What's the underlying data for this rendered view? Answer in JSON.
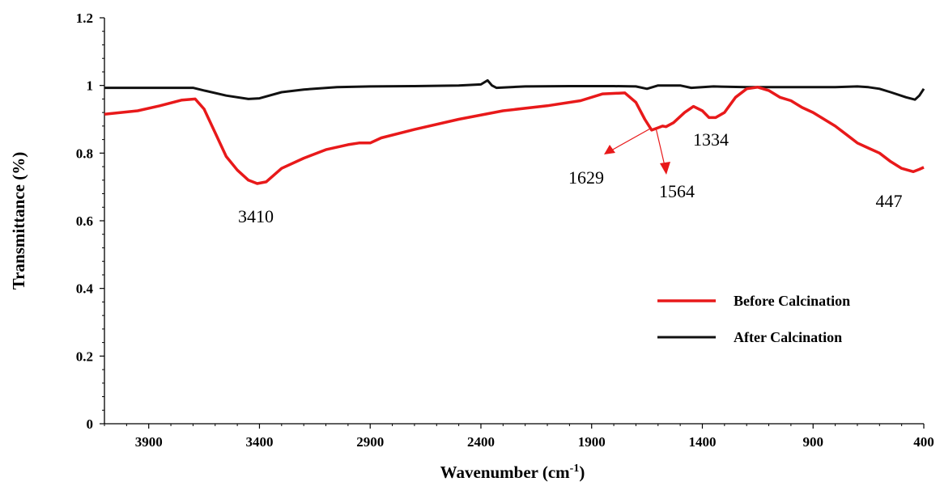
{
  "chart_data": {
    "type": "line",
    "xlabel": "Wavenumber (cm",
    "xlabel_sup": "-1",
    "xlabel_end": ")",
    "ylabel": "Transmittance (%)",
    "xlim": [
      4100,
      400
    ],
    "x_reversed": true,
    "ylim": [
      0,
      1.2
    ],
    "x_ticks": [
      3900,
      3400,
      2900,
      2400,
      1900,
      1400,
      900,
      400
    ],
    "y_ticks": [
      0,
      0.2,
      0.4,
      0.6,
      0.8,
      1,
      1.2
    ],
    "y_tick_labels": [
      "0",
      "0.2",
      "0.4",
      "0.6",
      "0.8",
      "1",
      "1.2"
    ],
    "grid": false,
    "legend_position": "center-right",
    "series": [
      {
        "name": "Before Calcination",
        "color": "#e8191a",
        "points": [
          [
            4100,
            0.915
          ],
          [
            3950,
            0.925
          ],
          [
            3850,
            0.94
          ],
          [
            3750,
            0.957
          ],
          [
            3690,
            0.96
          ],
          [
            3650,
            0.93
          ],
          [
            3600,
            0.86
          ],
          [
            3550,
            0.79
          ],
          [
            3500,
            0.75
          ],
          [
            3450,
            0.72
          ],
          [
            3410,
            0.71
          ],
          [
            3370,
            0.715
          ],
          [
            3300,
            0.755
          ],
          [
            3200,
            0.785
          ],
          [
            3100,
            0.81
          ],
          [
            3000,
            0.825
          ],
          [
            2950,
            0.83
          ],
          [
            2900,
            0.83
          ],
          [
            2850,
            0.845
          ],
          [
            2700,
            0.87
          ],
          [
            2500,
            0.9
          ],
          [
            2300,
            0.925
          ],
          [
            2100,
            0.94
          ],
          [
            1950,
            0.955
          ],
          [
            1850,
            0.975
          ],
          [
            1750,
            0.978
          ],
          [
            1700,
            0.95
          ],
          [
            1660,
            0.9
          ],
          [
            1629,
            0.868
          ],
          [
            1600,
            0.875
          ],
          [
            1580,
            0.88
          ],
          [
            1564,
            0.878
          ],
          [
            1530,
            0.89
          ],
          [
            1480,
            0.92
          ],
          [
            1440,
            0.938
          ],
          [
            1400,
            0.925
          ],
          [
            1370,
            0.905
          ],
          [
            1340,
            0.905
          ],
          [
            1300,
            0.92
          ],
          [
            1250,
            0.965
          ],
          [
            1200,
            0.99
          ],
          [
            1150,
            0.995
          ],
          [
            1100,
            0.985
          ],
          [
            1050,
            0.965
          ],
          [
            1000,
            0.955
          ],
          [
            950,
            0.935
          ],
          [
            900,
            0.92
          ],
          [
            850,
            0.9
          ],
          [
            800,
            0.88
          ],
          [
            750,
            0.855
          ],
          [
            700,
            0.83
          ],
          [
            650,
            0.815
          ],
          [
            600,
            0.8
          ],
          [
            550,
            0.775
          ],
          [
            500,
            0.755
          ],
          [
            447,
            0.745
          ],
          [
            420,
            0.752
          ],
          [
            400,
            0.758
          ]
        ]
      },
      {
        "name": "After Calcination",
        "color": "#111111",
        "points": [
          [
            4100,
            0.993
          ],
          [
            3900,
            0.993
          ],
          [
            3700,
            0.993
          ],
          [
            3650,
            0.985
          ],
          [
            3550,
            0.97
          ],
          [
            3450,
            0.96
          ],
          [
            3400,
            0.962
          ],
          [
            3300,
            0.98
          ],
          [
            3200,
            0.988
          ],
          [
            3050,
            0.995
          ],
          [
            2900,
            0.997
          ],
          [
            2700,
            0.998
          ],
          [
            2500,
            1.0
          ],
          [
            2400,
            1.003
          ],
          [
            2370,
            1.015
          ],
          [
            2350,
            1.0
          ],
          [
            2330,
            0.993
          ],
          [
            2200,
            0.997
          ],
          [
            2000,
            0.998
          ],
          [
            1800,
            0.998
          ],
          [
            1700,
            0.997
          ],
          [
            1650,
            0.99
          ],
          [
            1600,
            1.0
          ],
          [
            1500,
            1.0
          ],
          [
            1450,
            0.993
          ],
          [
            1350,
            0.997
          ],
          [
            1200,
            0.995
          ],
          [
            1100,
            0.995
          ],
          [
            950,
            0.995
          ],
          [
            800,
            0.995
          ],
          [
            700,
            0.997
          ],
          [
            650,
            0.995
          ],
          [
            600,
            0.99
          ],
          [
            550,
            0.98
          ],
          [
            480,
            0.965
          ],
          [
            440,
            0.958
          ],
          [
            420,
            0.97
          ],
          [
            400,
            0.99
          ]
        ]
      }
    ],
    "annotations": [
      {
        "text": "3410"
      },
      {
        "text": "1629"
      },
      {
        "text": "1564"
      },
      {
        "text": "1334"
      },
      {
        "text": "447"
      }
    ]
  }
}
